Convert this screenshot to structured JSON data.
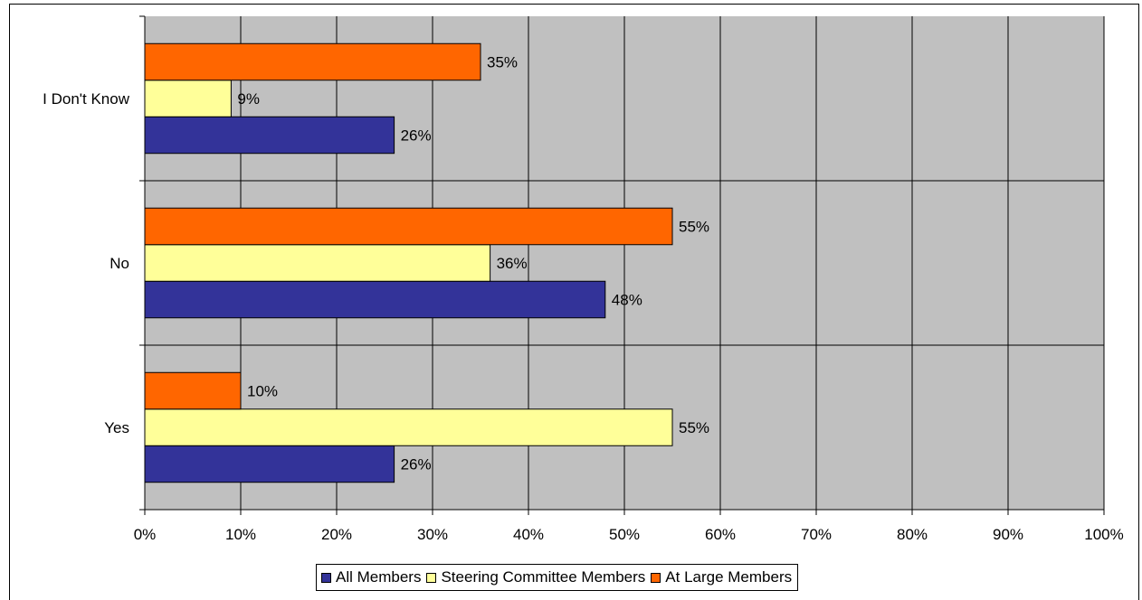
{
  "chart_data": {
    "type": "bar",
    "orientation": "horizontal",
    "categories": [
      "I Don't Know",
      "No",
      "Yes"
    ],
    "series": [
      {
        "name": "All Members",
        "color": "#333399",
        "values": [
          26,
          48,
          26
        ],
        "labels": [
          "26%",
          "48%",
          "26%"
        ]
      },
      {
        "name": "Steering Committee Members",
        "color": "#FFFF99",
        "values": [
          9,
          36,
          55
        ],
        "labels": [
          "9%",
          "36%",
          "55%"
        ]
      },
      {
        "name": "At Large Members",
        "color": "#FF6600",
        "values": [
          35,
          55,
          10
        ],
        "labels": [
          "35%",
          "55%",
          "10%"
        ]
      }
    ],
    "xlim": [
      0,
      100
    ],
    "xticks": [
      "0%",
      "10%",
      "20%",
      "30%",
      "40%",
      "50%",
      "60%",
      "70%",
      "80%",
      "90%",
      "100%"
    ],
    "grid": true,
    "plot_background": "#C0C0C0",
    "legend_position": "bottom"
  }
}
